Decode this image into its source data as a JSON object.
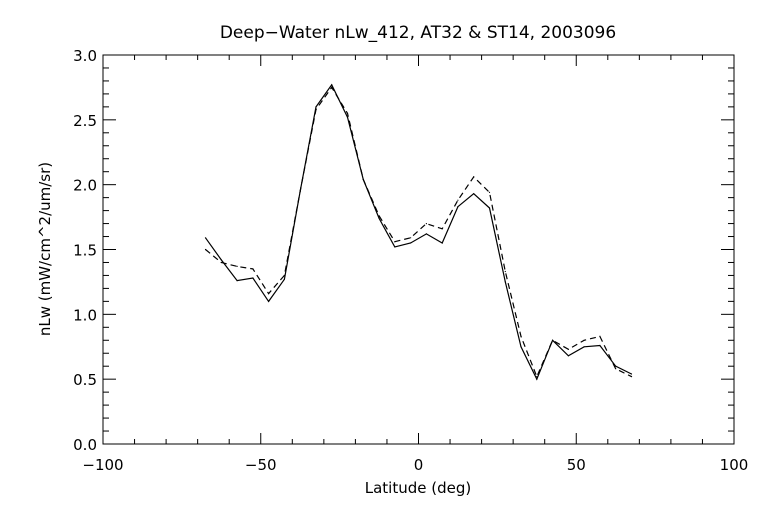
{
  "chart_data": {
    "type": "line",
    "title": "Deep−Water nLw_412, AT32 & ST14, 2003096",
    "xlabel": "Latitude (deg)",
    "ylabel": "nLw (mW/cm^2/um/sr)",
    "xlim": [
      -100,
      100
    ],
    "ylim": [
      0.0,
      3.0
    ],
    "x_ticks": [
      -100,
      -50,
      0,
      50,
      100
    ],
    "x_tick_labels": [
      "−100",
      "−50",
      "0",
      "50",
      "100"
    ],
    "y_ticks": [
      0.0,
      0.5,
      1.0,
      1.5,
      2.0,
      2.5,
      3.0
    ],
    "y_tick_labels": [
      "0.0",
      "0.5",
      "1.0",
      "1.5",
      "2.0",
      "2.5",
      "3.0"
    ],
    "grid": false,
    "legend": "none",
    "series": [
      {
        "line_style": "solid",
        "color": "#000000",
        "x": [
          -67.5,
          -62.5,
          -57.5,
          -52.5,
          -47.5,
          -42.5,
          -37.5,
          -32.5,
          -27.5,
          -22.5,
          -17.5,
          -12.5,
          -7.5,
          -2.5,
          2.5,
          7.5,
          12.5,
          17.5,
          22.5,
          27.5,
          32.5,
          37.5,
          42.5,
          47.5,
          52.5,
          57.5,
          62.5,
          67.5
        ],
        "y": [
          1.59,
          1.42,
          1.26,
          1.28,
          1.1,
          1.27,
          1.95,
          2.6,
          2.77,
          2.52,
          2.04,
          1.74,
          1.52,
          1.55,
          1.62,
          1.55,
          1.83,
          1.93,
          1.82,
          1.25,
          0.75,
          0.5,
          0.8,
          0.68,
          0.75,
          0.76,
          0.6,
          0.54
        ]
      },
      {
        "line_style": "dashed",
        "color": "#000000",
        "x": [
          -67.5,
          -62.5,
          -57.5,
          -52.5,
          -47.5,
          -42.5,
          -37.5,
          -32.5,
          -27.5,
          -22.5,
          -17.5,
          -12.5,
          -7.5,
          -2.5,
          2.5,
          7.5,
          12.5,
          17.5,
          22.5,
          27.5,
          32.5,
          37.5,
          42.5,
          47.5,
          52.5,
          57.5,
          62.5,
          67.5
        ],
        "y": [
          1.5,
          1.4,
          1.37,
          1.35,
          1.16,
          1.3,
          1.95,
          2.58,
          2.75,
          2.55,
          2.04,
          1.76,
          1.56,
          1.59,
          1.7,
          1.66,
          1.88,
          2.06,
          1.94,
          1.33,
          0.83,
          0.52,
          0.8,
          0.73,
          0.8,
          0.83,
          0.58,
          0.52
        ]
      }
    ]
  }
}
